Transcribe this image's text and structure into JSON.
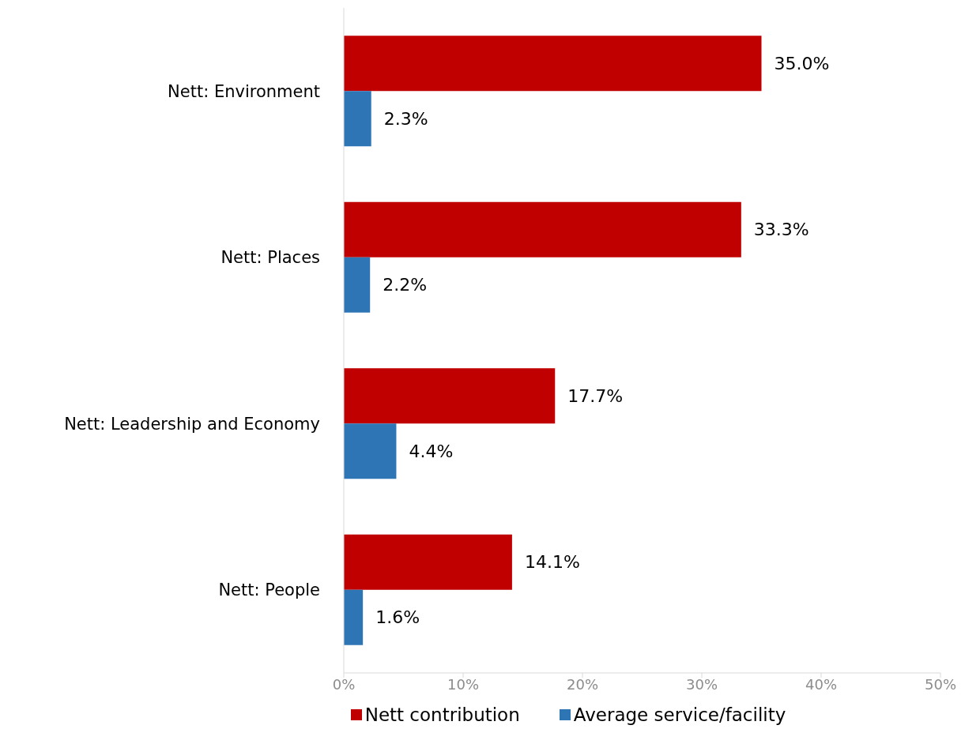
{
  "chart_data": {
    "type": "bar",
    "orientation": "horizontal",
    "categories": [
      "Nett: Environment",
      "Nett: Places",
      "Nett: Leadership and Economy",
      "Nett: People"
    ],
    "series": [
      {
        "name": "Nett contribution",
        "color": "#c00000",
        "values": [
          35.0,
          33.3,
          17.7,
          14.1
        ],
        "value_labels": [
          "35.0%",
          "33.3%",
          "17.7%",
          "14.1%"
        ]
      },
      {
        "name": "Average service/facility",
        "color": "#2e75b6",
        "values": [
          2.3,
          2.2,
          4.4,
          1.6
        ],
        "value_labels": [
          "2.3%",
          "2.2%",
          "4.4%",
          "1.6%"
        ]
      }
    ],
    "xlim": [
      0,
      50
    ],
    "xticks": [
      {
        "value": 0,
        "label": "0%"
      },
      {
        "value": 10,
        "label": "10%"
      },
      {
        "value": 20,
        "label": "20%"
      },
      {
        "value": 30,
        "label": "30%"
      },
      {
        "value": 40,
        "label": "40%"
      },
      {
        "value": 50,
        "label": "50%"
      }
    ],
    "grid": false,
    "legend": "bottom"
  }
}
